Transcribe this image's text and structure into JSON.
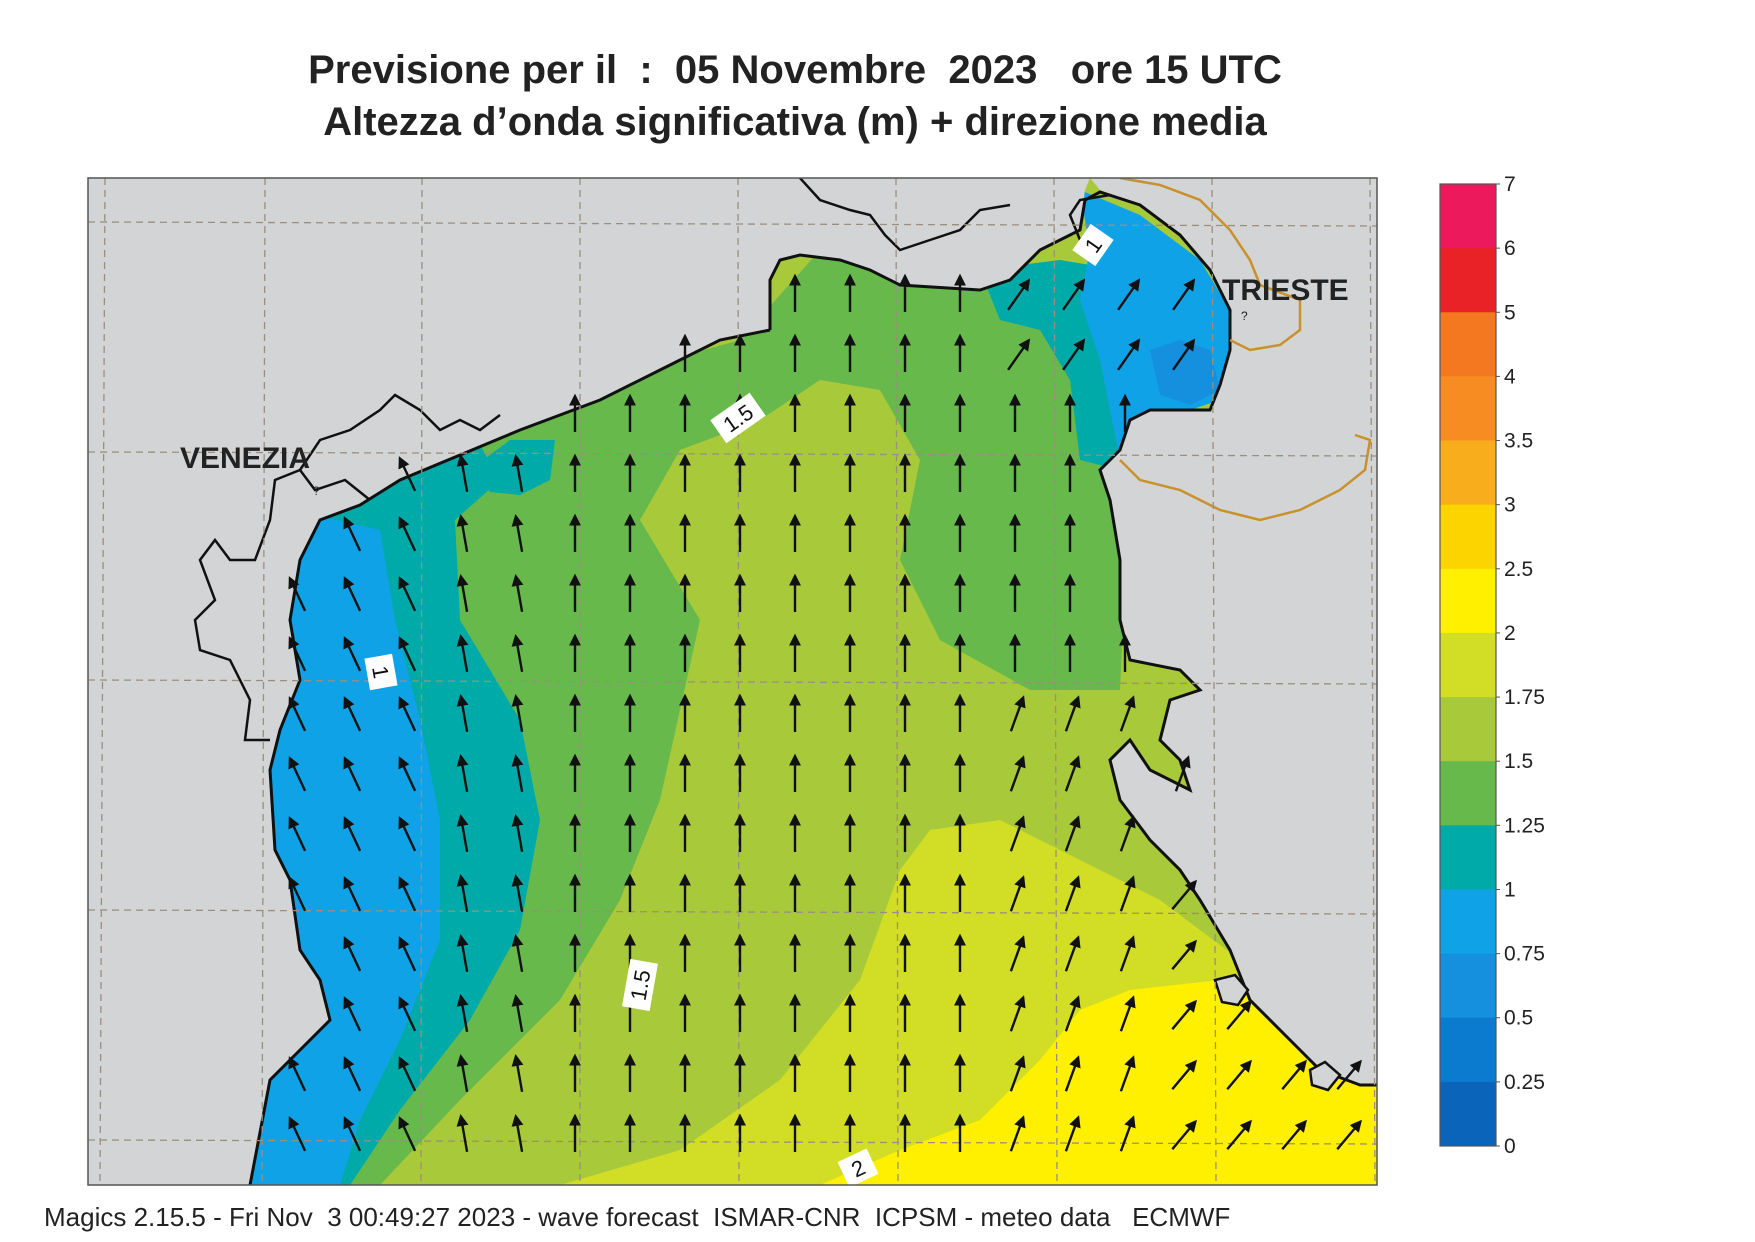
{
  "title": {
    "line1": "Previsione per il  :  05 Novembre  2023   ore 15 UTC",
    "line2": "Altezza d’onda significativa (m) + direzione media"
  },
  "cities": {
    "venezia": "VENEZIA",
    "trieste": "TRIESTE"
  },
  "contour_labels": [
    "1.5",
    "1",
    "1.5",
    "2",
    "1"
  ],
  "legend": {
    "levels": [
      "0",
      "0.25",
      "0.5",
      "0.75",
      "1",
      "1.25",
      "1.5",
      "1.75",
      "2",
      "2.5",
      "3",
      "3.5",
      "4",
      "5",
      "6",
      "7"
    ],
    "colors": [
      "#0a64b9",
      "#0b7bd0",
      "#1590de",
      "#10a2e6",
      "#00aaa8",
      "#67b94c",
      "#a8c93a",
      "#d2dd26",
      "#fff000",
      "#fcd400",
      "#f8ad1c",
      "#f78c22",
      "#f4781f",
      "#e82226",
      "#ec1a5c"
    ]
  },
  "colors": {
    "land": "#d3d4d5",
    "coast": "#111111",
    "border": "#c8912c",
    "grid": "#9a8f7f"
  },
  "footer": "Magics 2.15.5 - Fri Nov  3 00:49:27 2023 - wave forecast  ISMAR-CNR  ICPSM - meteo data   ECMWF"
}
